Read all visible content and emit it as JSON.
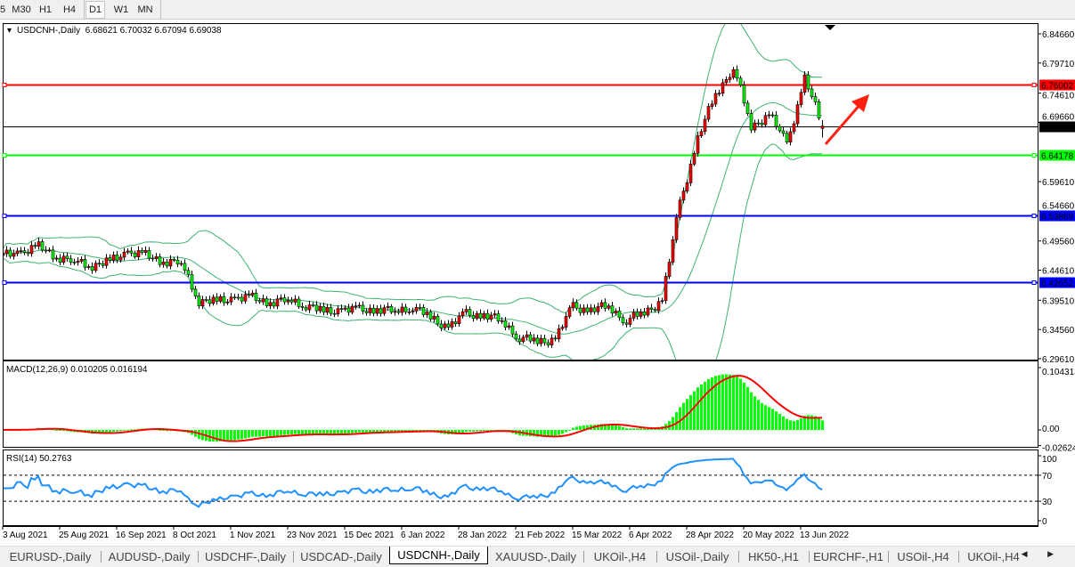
{
  "toolbar": {
    "timeframes": [
      "5",
      "M30",
      "H1",
      "H4",
      "D1",
      "W1",
      "MN"
    ],
    "active": "D1"
  },
  "chart": {
    "header": "USDCNH-,Daily  6.68621 6.70032 6.67094 6.69038",
    "price_ticks": [
      "6.84660",
      "6.79710",
      "6.74610",
      "6.69660",
      "6.59610",
      "6.54660",
      "6.49560",
      "6.44610",
      "6.39510",
      "6.34560",
      "6.29610"
    ],
    "levels": [
      {
        "value": "6.76002",
        "color": "#ff0000"
      },
      {
        "value": "6.69038",
        "color": "#000000"
      },
      {
        "value": "6.64178",
        "color": "#00ff00"
      },
      {
        "value": "6.53869",
        "color": "#0000ff"
      },
      {
        "value": "6.42652",
        "color": "#0000ff"
      }
    ],
    "date_ticks": [
      "3 Aug 2021",
      "25 Aug 2021",
      "16 Sep 2021",
      "8 Oct 2021",
      "1 Nov 2021",
      "23 Nov 2021",
      "15 Dec 2021",
      "6 Jan 2022",
      "28 Jan 2022",
      "21 Feb 2022",
      "15 Mar 2022",
      "6 Apr 2022",
      "28 Apr 2022",
      "20 May 2022",
      "13 Jun 2022"
    ],
    "up_color": "#ff0000",
    "down_color": "#00ff00",
    "band_color": "#3cb371"
  },
  "macd": {
    "label": "MACD(12,26,9) 0.010205 0.016194",
    "ticks": [
      "0.104313",
      "0.00",
      "-0.026249"
    ],
    "hist_color": "#00ff00",
    "signal_color": "#ff0000"
  },
  "rsi": {
    "label": "RSI(14) 50.2763",
    "ticks": [
      "100",
      "70",
      "30",
      "0"
    ],
    "color": "#1e90ff"
  },
  "chart_data": {
    "type": "candlestick",
    "symbol": "USDCNH-",
    "timeframe": "Daily",
    "weekly_closes": [
      6.47,
      6.478,
      6.485,
      6.47,
      6.46,
      6.455,
      6.46,
      6.478,
      6.47,
      6.462,
      6.458,
      6.395,
      6.392,
      6.4,
      6.398,
      6.392,
      6.395,
      6.388,
      6.375,
      6.38,
      6.378,
      6.38,
      6.376,
      6.385,
      6.365,
      6.35,
      6.372,
      6.37,
      6.36,
      6.332,
      6.325,
      6.33,
      6.385,
      6.378,
      6.385,
      6.36,
      6.375,
      6.395,
      6.56,
      6.668,
      6.745,
      6.79,
      6.69,
      6.71,
      6.66,
      6.77,
      6.69
    ],
    "last_ohlc": {
      "open": 6.68621,
      "high": 6.70032,
      "low": 6.67094,
      "close": 6.69038
    },
    "ylim": [
      6.2961,
      6.8466
    ]
  },
  "tabs": [
    "EURUSD-,Daily",
    "AUDUSD-,Daily",
    "USDCHF-,Daily",
    "USDCAD-,Daily",
    "USDCNH-,Daily",
    "XAUUSD-,Daily",
    "UKOil-,H4",
    "USOil-,Daily",
    "HK50-,H1",
    "EURCHF-,H1",
    "USOil-,H4",
    "UKOil-,H4"
  ],
  "active_tab": "USDCNH-,Daily",
  "scroll_arrows": "◀ ▶"
}
